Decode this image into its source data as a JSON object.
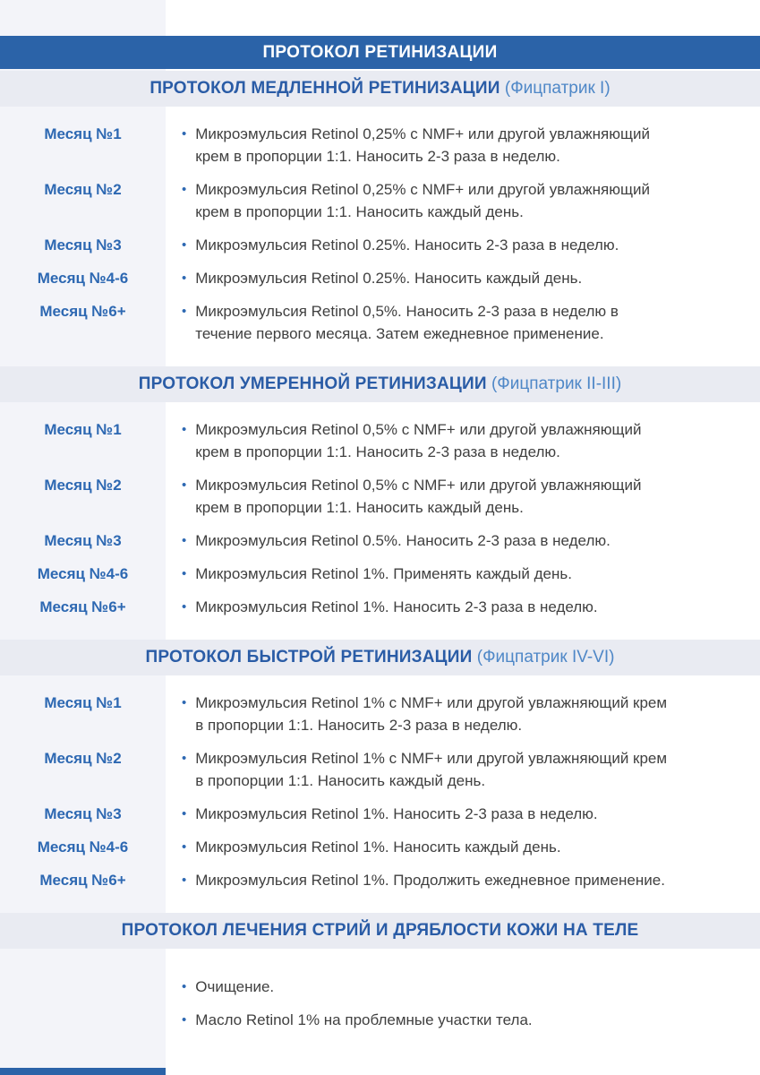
{
  "page": {
    "title": "ПРОТОКОЛ РЕТИНИЗАЦИИ"
  },
  "colors": {
    "primary_blue": "#2b63a8",
    "band_bg": "#e9ebf2",
    "stripe_bg": "#f3f4f9",
    "band_title": "#2a5ca6",
    "band_subtitle": "#4e87c7",
    "month_label": "#2d68b2",
    "body_text": "#404040"
  },
  "bullet_glyph": "•",
  "sections": [
    {
      "title": "ПРОТОКОЛ МЕДЛЕННОЙ РЕТИНИЗАЦИИ",
      "subtitle": " (Фицпатрик I)",
      "rows": [
        {
          "label": "Месяц №1",
          "text": "Микроэмульсия Retinol 0,25% с NMF+ или другой увлажняющий крем в пропорции 1:1. Наносить 2-3 раза в неделю."
        },
        {
          "label": "Месяц №2",
          "text": "Микроэмульсия Retinol 0,25% с NMF+ или другой увлажняющий крем в пропорции 1:1. Наносить каждый день."
        },
        {
          "label": "Месяц №3",
          "text": "Микроэмульсия Retinol 0.25%. Наносить 2-3 раза в неделю."
        },
        {
          "label": "Месяц №4-6",
          "text": "Микроэмульсия Retinol 0.25%. Наносить каждый день."
        },
        {
          "label": "Месяц №6+",
          "text": "Микроэмульсия Retinol 0,5%. Наносить 2-3 раза в неделю в течение первого месяца. Затем ежедневное применение."
        }
      ]
    },
    {
      "title": "ПРОТОКОЛ УМЕРЕННОЙ РЕТИНИЗАЦИИ",
      "subtitle": " (Фицпатрик II-III)",
      "rows": [
        {
          "label": "Месяц №1",
          "text": "Микроэмульсия Retinol 0,5% с NMF+ или другой увлажняющий крем в пропорции 1:1. Наносить 2-3 раза в неделю."
        },
        {
          "label": "Месяц №2",
          "text": "Микроэмульсия Retinol 0,5% с NMF+ или другой увлажняющий крем в пропорции 1:1. Наносить каждый день."
        },
        {
          "label": "Месяц №3",
          "text": "Микроэмульсия Retinol 0.5%. Наносить 2-3 раза в неделю."
        },
        {
          "label": "Месяц №4-6",
          "text": "Микроэмульсия Retinol 1%. Применять каждый день."
        },
        {
          "label": "Месяц №6+",
          "text": "Микроэмульсия Retinol 1%. Наносить 2-3 раза в неделю."
        }
      ]
    },
    {
      "title": "ПРОТОКОЛ БЫСТРОЙ РЕТИНИЗАЦИИ",
      "subtitle": " (Фицпатрик IV-VI)",
      "rows": [
        {
          "label": "Месяц №1",
          "text": "Микроэмульсия Retinol 1% с NMF+ или другой увлажняющий крем в пропорции 1:1. Наносить 2-3 раза в неделю."
        },
        {
          "label": "Месяц №2",
          "text": "Микроэмульсия Retinol 1% с NMF+ или другой увлажняющий крем в пропорции 1:1. Наносить каждый день."
        },
        {
          "label": "Месяц №3",
          "text": "Микроэмульсия Retinol 1%. Наносить 2-3 раза в неделю."
        },
        {
          "label": "Месяц №4-6",
          "text": "Микроэмульсия Retinol 1%. Наносить каждый день."
        },
        {
          "label": "Месяц №6+",
          "text": "Микроэмульсия Retinol 1%. Продолжить ежедневное применение."
        }
      ]
    },
    {
      "title": "ПРОТОКОЛ ЛЕЧЕНИЯ СТРИЙ И ДРЯБЛОСТИ КОЖИ НА ТЕЛЕ",
      "subtitle": "",
      "rows": [
        {
          "label": "",
          "text": "Очищение."
        },
        {
          "label": "",
          "text": "Масло Retinol 1% на проблемные участки тела."
        }
      ]
    }
  ]
}
